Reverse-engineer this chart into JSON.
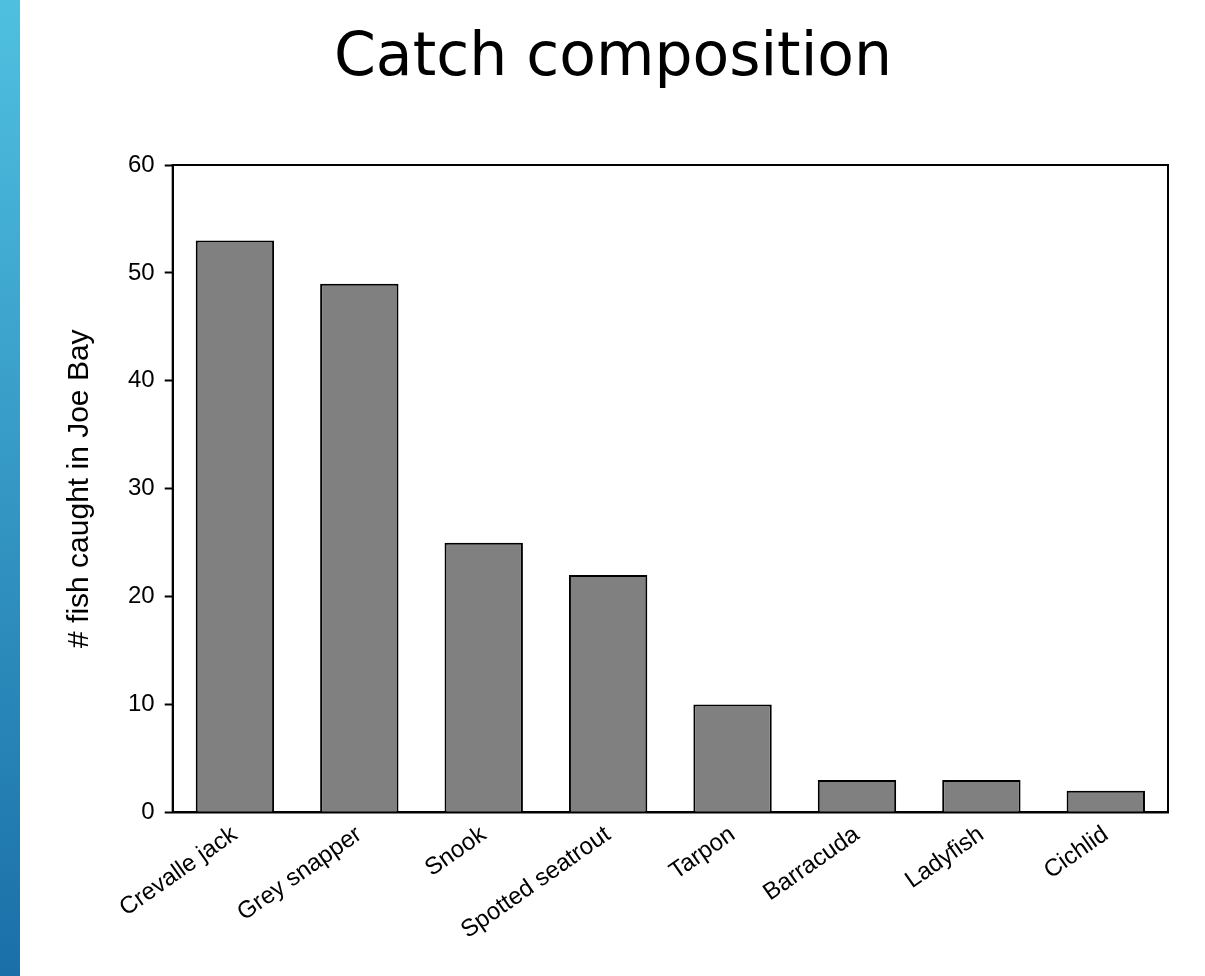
{
  "chart_data": {
    "type": "bar",
    "title": "Catch composition",
    "ylabel": "# fish caught in Joe Bay",
    "categories": [
      "Crevalle jack",
      "Grey snapper",
      "Snook",
      "Spotted seatrout",
      "Tarpon",
      "Barracuda",
      "Ladyfish",
      "Cichlid"
    ],
    "values": [
      53,
      49,
      25,
      22,
      10,
      3,
      3,
      2
    ],
    "color": "#808080",
    "ylim": [
      0,
      60
    ],
    "yticks": [
      0,
      10,
      20,
      30,
      40,
      50,
      60
    ],
    "grid": false,
    "legend": false
  }
}
